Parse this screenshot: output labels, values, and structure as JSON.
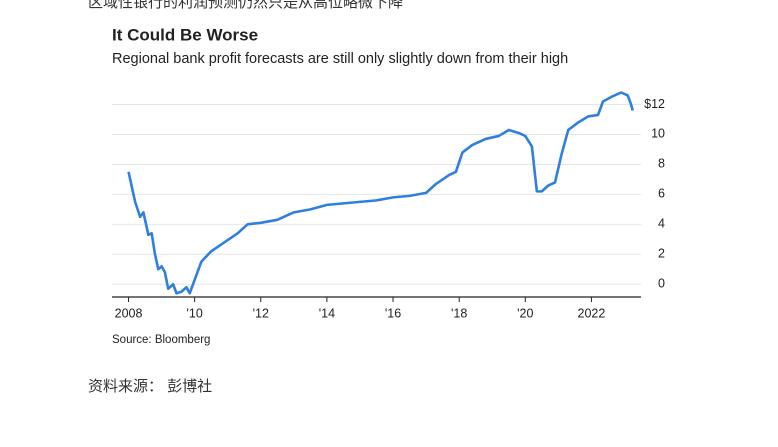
{
  "article": {
    "top_text": "区域性银行的利润预测仍然只是从高位略微下降",
    "caption": "资料来源： 彭博社"
  },
  "chart_data": {
    "type": "line",
    "title": "It Could Be Worse",
    "subtitle": "Regional bank profit forecasts are still only slightly down from their high",
    "source": "Source: Bloomberg",
    "x": [
      2008.0,
      2008.05,
      2008.2,
      2008.35,
      2008.45,
      2008.6,
      2008.7,
      2008.8,
      2008.9,
      2009.0,
      2009.1,
      2009.2,
      2009.35,
      2009.45,
      2009.6,
      2009.75,
      2009.85,
      2010.0,
      2010.2,
      2010.5,
      2010.9,
      2011.3,
      2011.6,
      2012.0,
      2012.5,
      2013.0,
      2013.5,
      2014.0,
      2014.5,
      2015.0,
      2015.5,
      2016.0,
      2016.5,
      2017.0,
      2017.3,
      2017.7,
      2017.9,
      2018.1,
      2018.4,
      2018.8,
      2019.2,
      2019.5,
      2019.8,
      2020.0,
      2020.2,
      2020.35,
      2020.5,
      2020.7,
      2020.9,
      2021.1,
      2021.3,
      2021.6,
      2021.9,
      2022.2,
      2022.35,
      2022.6,
      2022.9,
      2023.1,
      2023.2,
      2023.25
    ],
    "series": [
      {
        "color": "#2f7fe0",
        "values": [
          7.5,
          7.0,
          5.5,
          4.5,
          4.8,
          3.3,
          3.4,
          2.0,
          1.0,
          1.2,
          0.8,
          -0.3,
          0.0,
          -0.6,
          -0.5,
          -0.2,
          -0.6,
          0.3,
          1.5,
          2.2,
          2.8,
          3.4,
          4.0,
          4.1,
          4.3,
          4.8,
          5.0,
          5.3,
          5.4,
          5.5,
          5.6,
          5.8,
          5.9,
          6.1,
          6.7,
          7.3,
          7.5,
          8.8,
          9.3,
          9.7,
          9.9,
          10.3,
          10.1,
          9.9,
          9.2,
          6.2,
          6.2,
          6.6,
          6.8,
          8.7,
          10.3,
          10.8,
          11.2,
          11.3,
          12.2,
          12.5,
          12.8,
          12.6,
          12.0,
          11.6
        ]
      }
    ],
    "xlim": [
      2007.5,
      2023.5
    ],
    "xticks": [
      2008,
      {
        "value": 2010,
        "label": "'10"
      },
      {
        "value": 2012,
        "label": "'12"
      },
      {
        "value": 2014,
        "label": "'14"
      },
      {
        "value": 2016,
        "label": "'16"
      },
      {
        "value": 2018,
        "label": "'18"
      },
      {
        "value": 2020,
        "label": "'20"
      },
      2022
    ],
    "ylim": [
      -0.85,
      13
    ],
    "yticks": [
      0,
      2,
      4,
      6,
      8,
      10,
      {
        "value": 12,
        "label": "$12"
      }
    ],
    "grid": true
  }
}
